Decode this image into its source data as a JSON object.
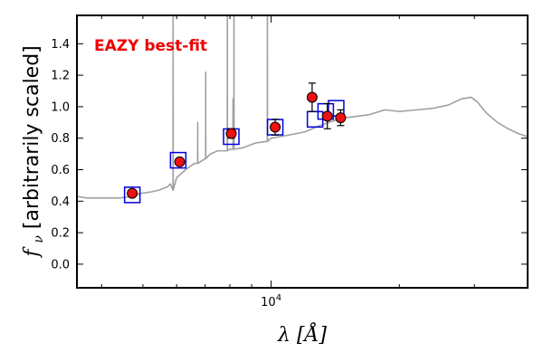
{
  "chart_data": {
    "type": "scatter",
    "title": "",
    "annotation": "EAZY best-fit",
    "xlabel_var": "λ",
    "xlabel_unit": "[Å]",
    "ylabel_var": "f",
    "ylabel_sub": "ν",
    "ylabel_text": "[arbitrarily scaled]",
    "x_scale": "log",
    "xlim": [
      3500,
      40000
    ],
    "ylim": [
      -0.15,
      1.58
    ],
    "ytick_values": [
      0.0,
      0.2,
      0.4,
      0.6,
      0.8,
      1.0,
      1.2,
      1.4
    ],
    "ytick_labels": [
      "0.0",
      "0.2",
      "0.4",
      "0.6",
      "0.8",
      "1.0",
      "1.2",
      "1.4"
    ],
    "xtick_major": {
      "value": 10000,
      "label_base": "10",
      "label_exp": "4"
    },
    "xtick_minor": [
      4000,
      5000,
      6000,
      7000,
      8000,
      9000,
      20000,
      30000
    ],
    "grid": false,
    "colors": {
      "spectrum": "#a0a0a0",
      "model_box": "#0000dd",
      "observed": "#ee1111",
      "annotation": "#ee0000"
    },
    "series": [
      {
        "kind": "model-spectrum",
        "continuum": [
          [
            3500,
            0.43
          ],
          [
            3700,
            0.42
          ],
          [
            4000,
            0.42
          ],
          [
            4400,
            0.42
          ],
          [
            4700,
            0.43
          ],
          [
            4950,
            0.45
          ],
          [
            5250,
            0.46
          ],
          [
            5450,
            0.47
          ],
          [
            5700,
            0.49
          ],
          [
            5800,
            0.51
          ],
          [
            5880,
            0.47
          ],
          [
            6000,
            0.55
          ],
          [
            6300,
            0.6
          ],
          [
            6600,
            0.64
          ],
          [
            7000,
            0.67
          ],
          [
            7200,
            0.7
          ],
          [
            7500,
            0.72
          ],
          [
            8000,
            0.73
          ],
          [
            8600,
            0.74
          ],
          [
            9200,
            0.77
          ],
          [
            10000,
            0.8
          ],
          [
            11000,
            0.82
          ],
          [
            12000,
            0.84
          ],
          [
            13000,
            0.88
          ],
          [
            14000,
            0.91
          ],
          [
            15000,
            0.93
          ],
          [
            16000,
            0.94
          ],
          [
            17000,
            0.95
          ],
          [
            18500,
            0.98
          ],
          [
            20000,
            0.97
          ],
          [
            22000,
            0.98
          ],
          [
            24000,
            0.99
          ],
          [
            26000,
            1.01
          ],
          [
            28000,
            1.05
          ],
          [
            29500,
            1.06
          ],
          [
            30500,
            1.03
          ],
          [
            32000,
            0.96
          ],
          [
            34000,
            0.9
          ],
          [
            36000,
            0.86
          ],
          [
            38000,
            0.83
          ],
          [
            40000,
            0.81
          ]
        ],
        "emission_lines": [
          {
            "x": 5886,
            "base": 0.47,
            "peak": 1.58
          },
          {
            "x": 6724,
            "base": 0.64,
            "peak": 0.9
          },
          {
            "x": 7021,
            "base": 0.67,
            "peak": 1.22
          },
          {
            "x": 7893,
            "base": 0.72,
            "peak": 1.58
          },
          {
            "x": 8138,
            "base": 0.73,
            "peak": 1.05
          },
          {
            "x": 8180,
            "base": 0.73,
            "peak": 1.58
          },
          {
            "x": 9800,
            "base": 0.78,
            "peak": 1.58
          }
        ]
      },
      {
        "kind": "model-photometry",
        "points": [
          {
            "x": 4720,
            "y": 0.44
          },
          {
            "x": 6050,
            "y": 0.66
          },
          {
            "x": 8060,
            "y": 0.81
          },
          {
            "x": 10220,
            "y": 0.87
          },
          {
            "x": 12680,
            "y": 0.92
          },
          {
            "x": 13430,
            "y": 0.97
          },
          {
            "x": 14210,
            "y": 0.99
          }
        ]
      },
      {
        "kind": "observed-photometry",
        "points": [
          {
            "x": 4720,
            "y": 0.45,
            "err": 0.02
          },
          {
            "x": 6100,
            "y": 0.65,
            "err": 0.02
          },
          {
            "x": 8060,
            "y": 0.83,
            "err": 0.03
          },
          {
            "x": 10220,
            "y": 0.87,
            "err": 0.05
          },
          {
            "x": 12480,
            "y": 1.06,
            "err": 0.09
          },
          {
            "x": 13550,
            "y": 0.94,
            "err": 0.08
          },
          {
            "x": 14560,
            "y": 0.93,
            "err": 0.05
          }
        ]
      }
    ]
  }
}
